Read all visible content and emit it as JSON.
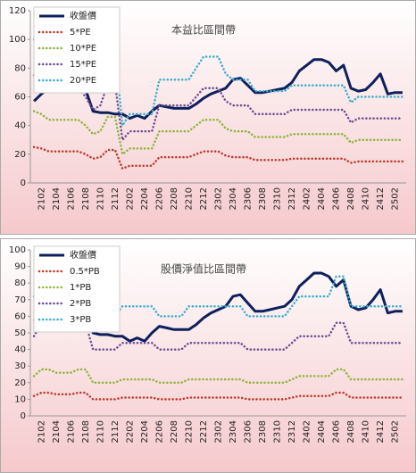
{
  "chart_data": [
    {
      "type": "line",
      "title": "本益比區間帶",
      "categories": [
        null,
        "2102",
        null,
        "2104",
        null,
        "2106",
        null,
        "2108",
        null,
        "2110",
        null,
        "2112",
        null,
        "2202",
        null,
        "2204",
        null,
        "2206",
        null,
        "2208",
        null,
        "2210",
        null,
        "2212",
        null,
        "2302",
        null,
        "2304",
        null,
        "2306",
        null,
        "2308",
        null,
        "2310",
        null,
        "2312",
        null,
        "2402",
        null,
        "2404",
        null,
        "2406",
        null,
        "2408",
        null,
        "2410",
        null,
        "2412",
        null,
        "2502",
        null
      ],
      "ylim": [
        0,
        120
      ],
      "yticks": [
        0,
        20,
        40,
        60,
        80,
        100,
        120
      ],
      "grid": false,
      "series": [
        {
          "name": "收盤價",
          "color": "#0d1f5c",
          "values": [
            57,
            62,
            66,
            68,
            65,
            66,
            68,
            65,
            50,
            49,
            49,
            48,
            48,
            45,
            47,
            45,
            50,
            54,
            53,
            52,
            52,
            52,
            55,
            59,
            62,
            64,
            66,
            72,
            73,
            68,
            63,
            63,
            64,
            65,
            66,
            70,
            78,
            82,
            86,
            86,
            84,
            78,
            82,
            66,
            64,
            65,
            70,
            76,
            62,
            63,
            63
          ]
        },
        {
          "name": "5*PE",
          "color": "#c0392b",
          "values": [
            25,
            24,
            22,
            22,
            22,
            22,
            22,
            20,
            17,
            18,
            23,
            23,
            10,
            12,
            12,
            12,
            12,
            18,
            18,
            18,
            18,
            18,
            20,
            22,
            22,
            22,
            19,
            18,
            18,
            18,
            16,
            16,
            16,
            16,
            16,
            17,
            17,
            17,
            17,
            17,
            17,
            17,
            17,
            14,
            15,
            15,
            15,
            15,
            15,
            15,
            15
          ]
        },
        {
          "name": "10*PE",
          "color": "#8db43a",
          "values": [
            50,
            48,
            44,
            44,
            44,
            44,
            44,
            40,
            34,
            36,
            46,
            46,
            20,
            24,
            24,
            24,
            24,
            36,
            36,
            36,
            36,
            36,
            40,
            44,
            44,
            44,
            38,
            36,
            36,
            36,
            32,
            32,
            32,
            32,
            32,
            34,
            34,
            34,
            34,
            34,
            34,
            34,
            34,
            28,
            30,
            30,
            30,
            30,
            30,
            30,
            30
          ]
        },
        {
          "name": "15*PE",
          "color": "#6a4c93",
          "values": [
            75,
            72,
            66,
            66,
            66,
            66,
            66,
            60,
            51,
            54,
            69,
            69,
            30,
            36,
            36,
            36,
            36,
            54,
            54,
            54,
            54,
            54,
            60,
            66,
            66,
            66,
            57,
            54,
            54,
            54,
            48,
            48,
            48,
            48,
            48,
            51,
            51,
            51,
            51,
            51,
            51,
            51,
            51,
            42,
            45,
            45,
            45,
            45,
            45,
            45,
            45
          ]
        },
        {
          "name": "20*PE",
          "color": "#3aaecb",
          "values": [
            100,
            96,
            88,
            88,
            88,
            88,
            88,
            80,
            68,
            72,
            92,
            92,
            40,
            48,
            48,
            48,
            48,
            72,
            72,
            72,
            72,
            72,
            80,
            88,
            88,
            88,
            76,
            72,
            72,
            72,
            64,
            64,
            64,
            64,
            64,
            68,
            68,
            68,
            68,
            68,
            68,
            68,
            68,
            56,
            60,
            60,
            60,
            60,
            60,
            60,
            60
          ]
        }
      ]
    },
    {
      "type": "line",
      "title": "股價淨值比區間帶",
      "categories": [
        null,
        "2102",
        null,
        "2104",
        null,
        "2106",
        null,
        "2108",
        null,
        "2110",
        null,
        "2112",
        null,
        "2202",
        null,
        "2204",
        null,
        "2206",
        null,
        "2208",
        null,
        "2210",
        null,
        "2212",
        null,
        "2302",
        null,
        "2304",
        null,
        "2306",
        null,
        "2308",
        null,
        "2310",
        null,
        "2312",
        null,
        "2402",
        null,
        "2404",
        null,
        "2406",
        null,
        "2408",
        null,
        "2410",
        null,
        "2412",
        null,
        "2502",
        null
      ],
      "ylim": [
        0,
        100
      ],
      "yticks": [
        0,
        10,
        20,
        30,
        40,
        50,
        60,
        70,
        80,
        90,
        100
      ],
      "grid": false,
      "series": [
        {
          "name": "收盤價",
          "color": "#0d1f5c",
          "values": [
            57,
            62,
            66,
            68,
            65,
            66,
            68,
            65,
            50,
            49,
            49,
            48,
            48,
            45,
            47,
            45,
            50,
            54,
            53,
            52,
            52,
            52,
            55,
            59,
            62,
            64,
            66,
            72,
            73,
            68,
            63,
            63,
            64,
            65,
            66,
            70,
            78,
            82,
            86,
            86,
            84,
            78,
            82,
            66,
            64,
            65,
            70,
            76,
            62,
            63,
            63
          ]
        },
        {
          "name": "0.5*PB",
          "color": "#c0392b",
          "values": [
            12,
            14,
            14,
            13,
            13,
            13,
            14,
            14,
            10,
            10,
            10,
            10,
            11,
            11,
            11,
            11,
            11,
            10,
            10,
            10,
            10,
            11,
            11,
            11,
            11,
            11,
            11,
            11,
            11,
            10,
            10,
            10,
            10,
            10,
            10,
            11,
            12,
            12,
            12,
            12,
            12,
            14,
            14,
            11,
            11,
            11,
            11,
            11,
            11,
            11,
            11
          ]
        },
        {
          "name": "1*PB",
          "color": "#8db43a",
          "values": [
            24,
            28,
            28,
            26,
            26,
            26,
            28,
            28,
            20,
            20,
            20,
            20,
            22,
            22,
            22,
            22,
            22,
            20,
            20,
            20,
            20,
            22,
            22,
            22,
            22,
            22,
            22,
            22,
            22,
            20,
            20,
            20,
            20,
            20,
            20,
            22,
            24,
            24,
            24,
            24,
            24,
            28,
            28,
            22,
            22,
            22,
            22,
            22,
            22,
            22,
            22
          ]
        },
        {
          "name": "2*PB",
          "color": "#6a4c93",
          "values": [
            48,
            56,
            56,
            52,
            52,
            52,
            56,
            56,
            40,
            40,
            40,
            40,
            44,
            44,
            44,
            44,
            44,
            40,
            40,
            40,
            40,
            44,
            44,
            44,
            44,
            44,
            44,
            44,
            44,
            40,
            40,
            40,
            40,
            40,
            40,
            44,
            48,
            48,
            48,
            48,
            48,
            56,
            56,
            44,
            44,
            44,
            44,
            44,
            44,
            44,
            44
          ]
        },
        {
          "name": "3*PB",
          "color": "#3aaecb",
          "values": [
            72,
            84,
            84,
            78,
            78,
            78,
            84,
            84,
            60,
            60,
            60,
            60,
            66,
            66,
            66,
            66,
            66,
            60,
            60,
            60,
            60,
            66,
            66,
            66,
            66,
            66,
            66,
            66,
            66,
            60,
            60,
            60,
            60,
            60,
            60,
            66,
            72,
            72,
            72,
            72,
            72,
            84,
            84,
            66,
            66,
            66,
            66,
            66,
            66,
            66,
            66
          ]
        }
      ]
    }
  ]
}
